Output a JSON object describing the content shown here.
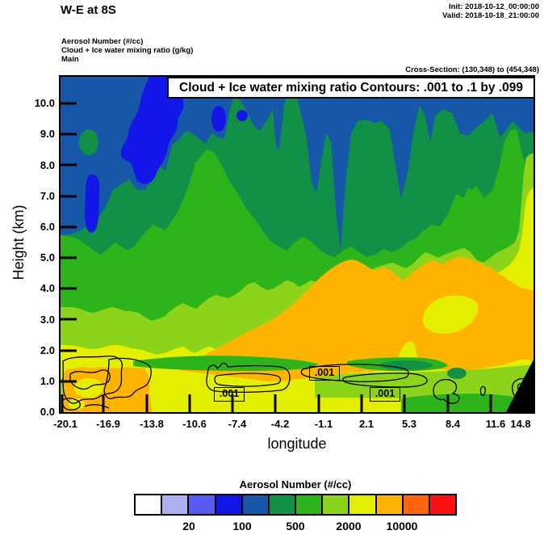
{
  "header": {
    "title": "W-E at 8S",
    "init": "Init: 2018-10-12_00:00:00",
    "valid": "Valid: 2018-10-18_21:00:00",
    "field1": "Aerosol Number   (#/cc)",
    "field2": "Cloud + Ice water mixing ratio   (g/kg)",
    "model": "Main",
    "cross_section": "Cross-Section: (130,348) to (454,348)"
  },
  "plot": {
    "inner_title": "Cloud + Ice water mixing ratio Contours: .001 to .1 by .099",
    "contour_labels": [
      {
        "text": ".001"
      },
      {
        "text": ".001"
      },
      {
        "text": ".001"
      }
    ]
  },
  "axes": {
    "y": {
      "label": "Height (km)",
      "ticks": [
        "10.0",
        "9.0",
        "8.0",
        "7.0",
        "6.0",
        "5.0",
        "4.0",
        "3.0",
        "2.0",
        "1.0",
        "0.0"
      ]
    },
    "x": {
      "label": "longitude",
      "ticks": [
        "-20.1",
        "-16.9",
        "-13.8",
        "-10.6",
        "-7.4",
        "-4.2",
        "-1.1",
        "2.1",
        "5.3",
        "8.4",
        "11.6",
        "14.8"
      ]
    }
  },
  "colorbar": {
    "title": "Aerosol Number  (#/cc)",
    "colors": [
      "#ffffff",
      "#b0b0f0",
      "#5a5aee",
      "#1217e8",
      "#1757a8",
      "#119148",
      "#2db31c",
      "#8cd41c",
      "#e4ef00",
      "#ffb400",
      "#ff6410",
      "#fb1010"
    ],
    "labels": [
      "20",
      "100",
      "500",
      "2000",
      "10000"
    ]
  },
  "chart_data": {
    "type": "heatmap",
    "subtype": "vertical-cross-section-filled-contour",
    "title": "W-E at 8S",
    "init_time": "2018-10-12_00:00:00",
    "valid_time": "2018-10-18_21:00:00",
    "cross_section_gridpoints": "(130,348) to (454,348)",
    "fill_field": {
      "name": "Aerosol Number",
      "units": "#/cc",
      "colorbar_labeled_levels": [
        20,
        100,
        500,
        2000,
        10000
      ],
      "colorbar_colors": [
        "#ffffff",
        "#b0b0f0",
        "#5a5aee",
        "#1217e8",
        "#1757a8",
        "#119148",
        "#2db31c",
        "#8cd41c",
        "#e4ef00",
        "#ffb400",
        "#ff6410",
        "#fb1010"
      ]
    },
    "line_field": {
      "name": "Cloud + Ice water mixing ratio",
      "units": "g/kg",
      "contour_levels": [
        0.001,
        0.1
      ],
      "contour_interval": 0.099,
      "visible_line_labels": [
        ".001",
        ".001",
        ".001"
      ]
    },
    "xlabel": "longitude",
    "ylabel": "Height (km)",
    "x_ticks": [
      -20.1,
      -16.9,
      -13.8,
      -10.6,
      -7.4,
      -4.2,
      -1.1,
      2.1,
      5.3,
      8.4,
      11.6,
      14.8
    ],
    "y_ticks": [
      0,
      1,
      2,
      3,
      4,
      5,
      6,
      7,
      8,
      9,
      10
    ],
    "xlim": [
      -20.1,
      14.8
    ],
    "ylim": [
      0,
      10.9
    ],
    "structure_notes": "High aerosol number (orange/yellow) in lowest 1-4 km, decreasing with height to low values (blue) near 8-10 km; terrain mask black wedge at lower right; .001 g/kg cloud contour loops near 0.5-1.5 km"
  }
}
